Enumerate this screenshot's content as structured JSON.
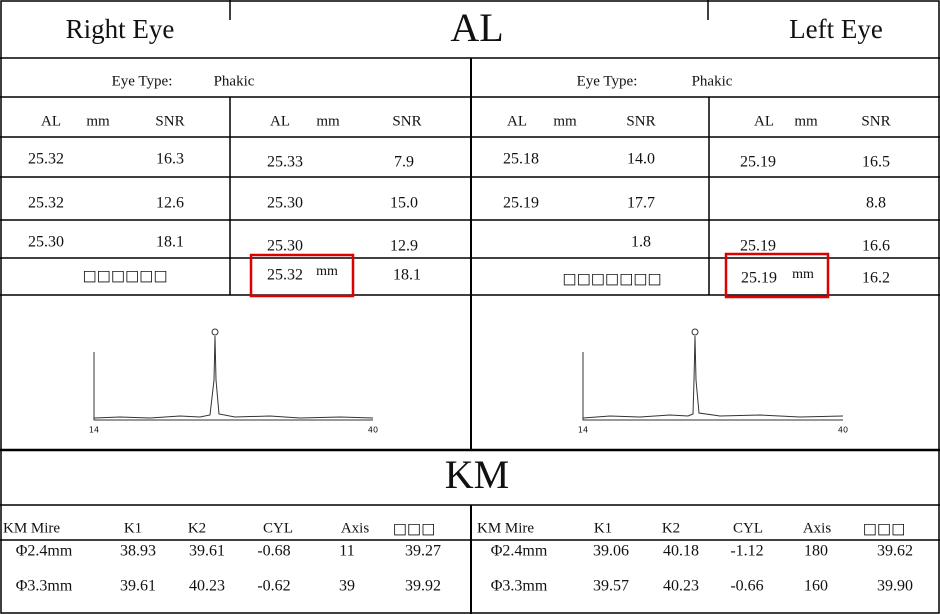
{
  "header": {
    "right_title": "Right Eye",
    "title": "AL",
    "left_title": "Left Eye"
  },
  "al": {
    "right_eye": {
      "eye_type_label": "Eye Type:",
      "eye_type": "Phakic",
      "columns": [
        "AL",
        "mm",
        "SNR",
        "AL",
        "mm",
        "SNR"
      ],
      "rows": [
        [
          "25.32",
          "16.3",
          "25.33",
          "7.9"
        ],
        [
          "25.32",
          "12.6",
          "25.30",
          "15.0"
        ],
        [
          "25.30",
          "18.1",
          "25.30",
          "12.9"
        ]
      ],
      "summary": {
        "label": "□□□□□□",
        "al": "25.32",
        "unit": "mm",
        "snr": "18.1"
      },
      "graph": {
        "x_start": 14,
        "x_end": 40
      }
    },
    "left_eye": {
      "eye_type_label": "Eye Type:",
      "eye_type": "Phakic",
      "columns": [
        "AL",
        "mm",
        "SNR",
        "AL",
        "mm",
        "SNR"
      ],
      "rows": [
        [
          "25.18",
          "14.0",
          "25.19",
          "16.5"
        ],
        [
          "25.19",
          "17.7",
          null,
          "8.8"
        ],
        [
          null,
          "1.8",
          "25.19",
          "16.6"
        ]
      ],
      "summary": {
        "label": "□□□□□□□",
        "al": "25.19",
        "unit": "mm",
        "snr": "16.2"
      },
      "graph": {
        "x_start": 14,
        "x_end": 40
      }
    }
  },
  "km": {
    "title": "KM",
    "right_eye": {
      "columns": [
        "KM  Mire",
        "K1",
        "K2",
        "CYL",
        "Axis",
        "□□□"
      ],
      "rows": [
        [
          "Φ2.4mm",
          "38.93",
          "39.61",
          "-0.68",
          "11",
          "39.27"
        ],
        [
          "Φ3.3mm",
          "39.61",
          "40.23",
          "-0.62",
          "39",
          "39.92"
        ]
      ]
    },
    "left_eye": {
      "columns": [
        "KM  Mire",
        "K1",
        "K2",
        "CYL",
        "Axis",
        "□□□"
      ],
      "rows": [
        [
          "Φ2.4mm",
          "39.06",
          "40.18",
          "-1.12",
          "180",
          "39.62"
        ],
        [
          "Φ3.3mm",
          "39.57",
          "40.23",
          "-0.66",
          "160",
          "39.90"
        ]
      ]
    }
  }
}
